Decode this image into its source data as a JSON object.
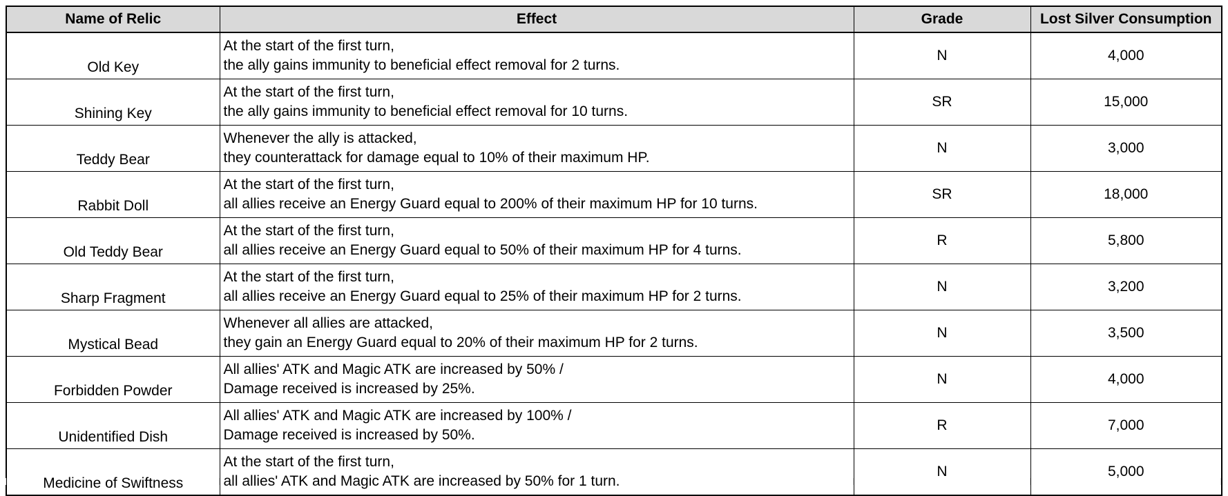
{
  "headers": {
    "name": "Name of Relic",
    "effect": "Effect",
    "grade": "Grade",
    "cost": "Lost Silver Consumption"
  },
  "rows": [
    {
      "name": "Old Key",
      "effect": [
        "At the start of the first turn,",
        "the ally gains immunity to beneficial effect removal for 2 turns."
      ],
      "grade": "N",
      "cost": "4,000"
    },
    {
      "name": "Shining Key",
      "effect": [
        "At the start of the first turn,",
        "the ally gains immunity to beneficial effect removal for 10 turns."
      ],
      "grade": "SR",
      "cost": "15,000"
    },
    {
      "name": "Teddy Bear",
      "effect": [
        "Whenever the ally is attacked,",
        "they counterattack for damage equal to 10% of their maximum HP."
      ],
      "grade": "N",
      "cost": "3,000"
    },
    {
      "name": "Rabbit Doll",
      "effect": [
        "At the start of the first turn,",
        "all allies receive an Energy Guard equal to 200% of their maximum HP for 10 turns."
      ],
      "grade": "SR",
      "cost": "18,000"
    },
    {
      "name": "Old Teddy Bear",
      "effect": [
        "At the start of the first turn,",
        "all allies receive an Energy Guard equal to 50% of their maximum HP for 4 turns."
      ],
      "grade": "R",
      "cost": "5,800"
    },
    {
      "name": "Sharp Fragment",
      "effect": [
        "At the start of the first turn,",
        "all allies receive an Energy Guard equal to 25% of their maximum HP for 2 turns."
      ],
      "grade": "N",
      "cost": "3,200"
    },
    {
      "name": "Mystical Bead",
      "effect": [
        "Whenever all allies are attacked,",
        "they gain an Energy Guard equal to 20% of their maximum HP for 2 turns."
      ],
      "grade": "N",
      "cost": "3,500"
    },
    {
      "name": "Forbidden Powder",
      "effect": [
        "All allies' ATK and Magic ATK are increased by 50% /",
        "Damage received is increased by 25%."
      ],
      "grade": "N",
      "cost": "4,000"
    },
    {
      "name": "Unidentified Dish",
      "effect": [
        "All allies' ATK and Magic ATK are increased by 100% /",
        "Damage received is increased by 50%."
      ],
      "grade": "R",
      "cost": "7,000"
    },
    {
      "name": "Medicine of Swiftness",
      "effect": [
        "At the start of the first turn,",
        "all allies' ATK and Magic ATK are increased by 50% for 1 turn."
      ],
      "grade": "N",
      "cost": "5,000"
    }
  ],
  "colors": {
    "header_background": "#d9d9d9",
    "border": "#000000",
    "text": "#000000"
  }
}
